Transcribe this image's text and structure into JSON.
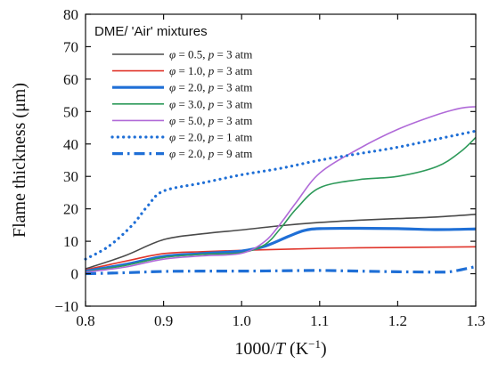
{
  "chart_data": {
    "type": "line",
    "xlabel": "1000/T (K⁻¹)",
    "xlabel_parts": {
      "prefix": "1000/",
      "var": "T",
      "suffix_open": " (K",
      "sup": "−1",
      "suffix_close": ")"
    },
    "ylabel": "Flame thickness (μm)",
    "xlim": [
      0.8,
      1.3
    ],
    "ylim": [
      -10,
      80
    ],
    "xticks": [
      0.8,
      0.9,
      1.0,
      1.1,
      1.2,
      1.3
    ],
    "xtick_labels": [
      "0.8",
      "0.9",
      "1.0",
      "1.1",
      "1.2",
      "1.3"
    ],
    "yticks": [
      -10,
      0,
      10,
      20,
      30,
      40,
      50,
      60,
      70,
      80
    ],
    "ytick_labels": [
      "−10",
      "0",
      "10",
      "20",
      "30",
      "40",
      "50",
      "60",
      "70",
      "80"
    ],
    "grid": false,
    "legend_title": "DME/ 'Air' mixtures",
    "legend_position": "top-left",
    "series": [
      {
        "name": "φ = 0.5, p = 3 atm",
        "phi": "0.5",
        "p": "3",
        "color": "#4a4a4a",
        "style": "solid",
        "width": "thin",
        "x": [
          0.8,
          0.85,
          0.9,
          0.95,
          1.0,
          1.05,
          1.1,
          1.15,
          1.2,
          1.25,
          1.3
        ],
        "y": [
          1.5,
          5.5,
          10.5,
          12.3,
          13.5,
          14.8,
          15.8,
          16.5,
          17.0,
          17.5,
          18.3
        ]
      },
      {
        "name": "φ = 1.0, p = 3 atm",
        "phi": "1.0",
        "p": "3",
        "color": "#e0342a",
        "style": "solid",
        "width": "thin",
        "x": [
          0.8,
          0.85,
          0.9,
          0.95,
          1.0,
          1.05,
          1.1,
          1.15,
          1.2,
          1.25,
          1.3
        ],
        "y": [
          1.2,
          3.8,
          6.2,
          6.8,
          7.2,
          7.5,
          7.8,
          8.0,
          8.1,
          8.2,
          8.3
        ]
      },
      {
        "name": "φ = 2.0, p = 3 atm",
        "phi": "2.0",
        "p": "3",
        "color": "#1f6fd6",
        "style": "solid",
        "width": "thick",
        "x": [
          0.8,
          0.85,
          0.9,
          0.95,
          1.0,
          1.03,
          1.06,
          1.08,
          1.1,
          1.15,
          1.2,
          1.25,
          1.3
        ],
        "y": [
          0.8,
          2.8,
          5.3,
          6.2,
          7.0,
          8.5,
          11.5,
          13.3,
          13.9,
          14.0,
          13.9,
          13.6,
          13.8
        ]
      },
      {
        "name": "φ = 3.0, p = 3 atm",
        "phi": "3.0",
        "p": "3",
        "color": "#2e9a5a",
        "style": "solid",
        "width": "thin",
        "x": [
          0.8,
          0.85,
          0.9,
          0.95,
          1.0,
          1.03,
          1.05,
          1.07,
          1.1,
          1.15,
          1.2,
          1.25,
          1.28,
          1.3
        ],
        "y": [
          0.6,
          2.5,
          5.0,
          6.0,
          6.5,
          9.0,
          14.0,
          20.0,
          26.5,
          29.0,
          30.0,
          33.0,
          37.5,
          42.0
        ]
      },
      {
        "name": "φ = 5.0, p = 3 atm",
        "phi": "5.0",
        "p": "3",
        "color": "#b06ad8",
        "style": "solid",
        "width": "thin",
        "x": [
          0.8,
          0.85,
          0.9,
          0.95,
          1.0,
          1.03,
          1.05,
          1.07,
          1.1,
          1.15,
          1.2,
          1.25,
          1.28,
          1.3
        ],
        "y": [
          0.5,
          2.0,
          4.5,
          5.5,
          6.3,
          10.0,
          15.5,
          22.0,
          31.0,
          38.5,
          44.5,
          49.0,
          51.0,
          51.5
        ]
      },
      {
        "name": "φ = 2.0, p = 1 atm",
        "phi": "2.0",
        "p": "1",
        "color": "#1f6fd6",
        "style": "dotted",
        "width": "thick",
        "x": [
          0.8,
          0.83,
          0.86,
          0.88,
          0.9,
          0.95,
          1.0,
          1.05,
          1.1,
          1.15,
          1.2,
          1.25,
          1.3
        ],
        "y": [
          4.5,
          8.5,
          15.0,
          21.0,
          25.5,
          28.0,
          30.5,
          32.5,
          35.0,
          37.0,
          39.0,
          41.5,
          44.0
        ]
      },
      {
        "name": "φ = 2.0, p = 9 atm",
        "phi": "2.0",
        "p": "9",
        "color": "#1f6fd6",
        "style": "dashdot",
        "width": "thick",
        "x": [
          0.8,
          0.85,
          0.9,
          0.95,
          1.0,
          1.05,
          1.1,
          1.15,
          1.2,
          1.25,
          1.27,
          1.3
        ],
        "y": [
          0.0,
          0.3,
          0.7,
          0.8,
          0.8,
          0.9,
          1.0,
          0.8,
          0.6,
          0.5,
          0.7,
          2.2
        ]
      }
    ]
  }
}
